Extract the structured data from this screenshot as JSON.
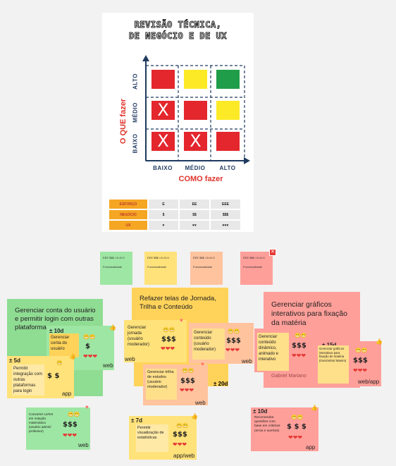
{
  "matrix": {
    "title_line1": "REVISÃO TÉCNICA,",
    "title_line2": "DE NEGÓCIO E DE UX",
    "y_title": "O QUE fazer",
    "x_title": "COMO fazer",
    "y_levels": [
      "ALTO",
      "MÉDIO",
      "BAIXO"
    ],
    "x_levels": [
      "BAIXO",
      "MÉDIO",
      "ALTO"
    ],
    "cells": [
      [
        "#e4262d",
        "#fcea27",
        "#1f9d48"
      ],
      [
        "#e4262d",
        "#e4262d",
        "#fcea27"
      ],
      [
        "#e4262d",
        "#e4262d",
        "#e4262d"
      ]
    ],
    "x_marks": [
      "X",
      "X",
      "X"
    ],
    "legend": {
      "rows": [
        {
          "label": "ESFORÇO",
          "v1": "E",
          "v2": "EE",
          "v3": "EEE"
        },
        {
          "label": "NEGÓCIO",
          "v1": "$",
          "v2": "$$",
          "v3": "$$$"
        },
        {
          "label": "UX",
          "v1": "♥",
          "v2": "♥♥",
          "v3": "♥♥♥"
        }
      ]
    }
  },
  "templates": [
    {
      "head": "EEE $$$ <3<3<3",
      "body": "Funcionalidade"
    },
    {
      "head": "EEE $$$ <3<3<3",
      "body": "Funcionalidade"
    },
    {
      "head": "EEE $$$ <3<3<3",
      "body": "Funcionalidade"
    },
    {
      "head": "EEE $$$ <3<3<3",
      "body": "Funcionalidade"
    }
  ],
  "groups": {
    "g1": "Gerenciar conta do usuário e permitir login com outras plataformas",
    "g2": "Refazer telas de Jornada, Trilha e Conteúdo",
    "g3": "Gerenciar gráficos interativos para fixação da matéria",
    "g3_author": "Gabriel Mariano"
  },
  "cards": {
    "c1": {
      "est": "± 10d",
      "text": "Gerenciar conta do usuário",
      "money": "$",
      "platform": "web"
    },
    "c2": {
      "est": "± 5d",
      "text": "Permitir integração com outras plataformas para login",
      "money": "$ $",
      "platform": "app"
    },
    "c3": {
      "text": "Gerenciar jornada (usuário moderador)",
      "money": "$$$",
      "platform": "web"
    },
    "c4": {
      "text": "Gerenciar conteúdo (usuário moderador)",
      "money": "$$$",
      "platform": "web"
    },
    "c5": {
      "text": "Gerenciar trilha de estudos (usuário moderador)",
      "money": "$$$",
      "platform": "web"
    },
    "c5_est": "± 20d",
    "c6": {
      "text": "Gerenciar conteúdo dinâmico, animado e interativo",
      "money": "$$$"
    },
    "c7": {
      "est": "± 15d",
      "text": "Gerenciar gráficos interativos para fixação de matéria (GeoGebra/ Manim)",
      "money": "$$$",
      "platform": "web/app"
    },
    "c8": {
      "text": "Converter LaTeX em notação matemática (usuário admin/ professor)",
      "money": "$$$",
      "platform": "web"
    },
    "c9": {
      "est": "± 7d",
      "text": "Permitir visualização de estatísticas",
      "money": "$$$",
      "platform": "app/web"
    },
    "c10": {
      "est": "± 10d",
      "text": "Recomendar questões com base em critérios (erros e acertos)",
      "money": "$ $ $",
      "platform": "app"
    }
  },
  "glyphs": {
    "hearts3": "❤❤❤",
    "hearts2": "❤❤",
    "faces": "😬😬",
    "face": "😬"
  }
}
